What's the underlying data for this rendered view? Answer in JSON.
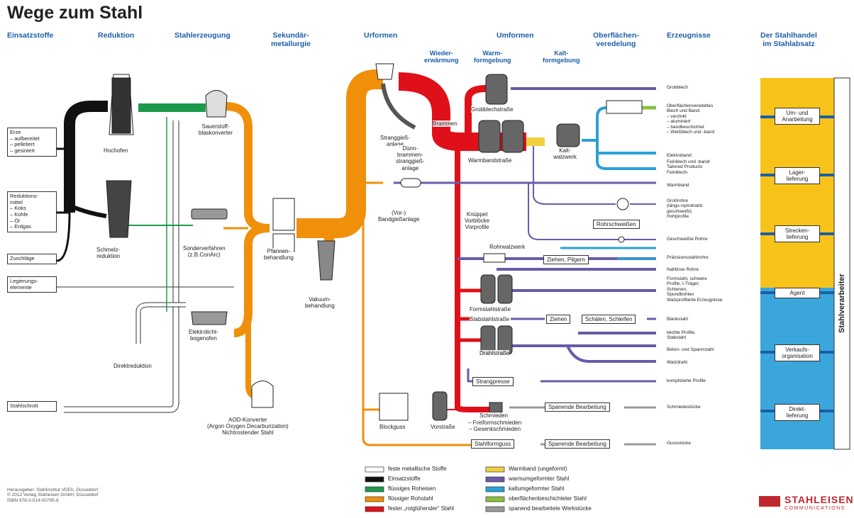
{
  "title": "Wege zum Stahl",
  "headers": [
    "Einsatzstoffe",
    "Reduktion",
    "Stahlerzeugung",
    "Sekundär-\nmetallurgie",
    "Urformen",
    "Umformen",
    "Oberflächen-\nveredelung",
    "Erzeugnisse",
    "Der Stahlhandel\nim Stahlabsatz"
  ],
  "subheaders": [
    "Wieder-\nerwärmung",
    "Warm-\nformgebung",
    "Kalt-\nformgebung"
  ],
  "inputs": [
    "Erze\n– aufbereitet\n– pelletiert\n– gesintert",
    "Reduktions-\nmittel\n– Koks\n– Kohle\n– Öl\n– Erdgas",
    "Zuschläge",
    "Legierungs-\nelemente",
    "Stahlschrott"
  ],
  "processes": [
    "Hochofen",
    "Schmelz-\nreduktion",
    "Direktreduktion",
    "Sauerstoff-\nblaskonverter",
    "Sonderverfahren\n(z.B.ConArc)",
    "Elektrolicht-\nbogenofen",
    "Pfannen-\nbehandlung",
    "Vakuum-\nbehandlung",
    "AOD-Konverter\n(Argon Oxygen Decarburization)\nNichtrostender Stahl",
    "Stranggieß-\nanlage",
    "Dünn-\nbrammen-\nstranggieß-\nanlage",
    "(Vor-)\nBandgießanlage",
    "Brammen",
    "Grobblechstraße",
    "Warmbandstraße",
    "Kalt-\nwalzwerk",
    "Knüppel\nVorblöcke\nVorprofile",
    "Rohrwalzwerk",
    "Formstahlstraße",
    "Stabstahlstraße",
    "Drahtstraße",
    "Schmieden",
    "– Freiformschmieden\n– Gesenkschmieden",
    "Blockguss",
    "Vorstraße"
  ],
  "boxed_steps": [
    "Rohrschweißen",
    "Ziehen, Pilgern",
    "Ziehen",
    "Schälen, Schleifen",
    "Strangpresse",
    "Spanende Bearbeitung",
    "Stahlformguss",
    "Spanende Bearbeitung"
  ],
  "products": [
    "Grobblech",
    "Oberflächenveredeltes\nBlech und Band:\n– verzinkt\n– aluminiert\n– bandbeschichtet\n– Weißblech und -band",
    "Elektroband",
    "Feinblech und -band/\nTailored Products\nFeinblech-",
    "Warmband",
    "Großrohre\n(längs-/spiralnaht-\ngeschweißt)\nHohlprofile",
    "Geschweißte Rohre",
    "Präzisionsstahlrohre",
    "Nahtlose Rohre",
    "Formstahl, schwere\nProfile, I-Träger,\nSchienen,\nSpundbohlen\nWalzprofilierte Erzeugnisse",
    "Blankstahl",
    "leichte Profile,\nStabstahl",
    "Beton- und Spannstahl",
    "Walzdraht",
    "komplizierte Profile",
    "Schmiedestücke",
    "Gussstücke"
  ],
  "trade": {
    "vertical_label": "Stahlverarbeiter",
    "channels": [
      "Um- und\nAnarbeitung",
      "Lager-\nlieferung",
      "Strecken-\nlieferung",
      "Agent",
      "Verkaufs-\norganisation",
      "Direkt-\nlieferung"
    ]
  },
  "legend": [
    {
      "label": "feste metallische Stoffe",
      "color": "#ffffff"
    },
    {
      "label": "Einsatzstoffe",
      "color": "#111111"
    },
    {
      "label": "flüssiges Roheisen",
      "color": "#1a9a4a"
    },
    {
      "label": "flüssiger Rohstahl",
      "color": "#f0900a"
    },
    {
      "label": "fester „rotglühender“ Stahl",
      "color": "#e0101a"
    },
    {
      "label": "Warmband (ungeformt)",
      "color": "#f0d040"
    },
    {
      "label": "warmumgeformter Stahl",
      "color": "#6a5aa8"
    },
    {
      "label": "kaltumgeformter Stahl",
      "color": "#2aa0d8"
    },
    {
      "label": "oberflächenbeschichteter Stahl",
      "color": "#8ac040"
    },
    {
      "label": "spanend bearbeitete Werkstücke",
      "color": "#9a9a9a"
    }
  ],
  "footer": {
    "publisher": "Herausgeber: Stahlinstitut VDEh, Düsseldorf\n© 2012 Verlag Stahleisen GmbH, Düsseldorf\nISBN 978-3-514-00795-6",
    "logo": "STAHLEISEN",
    "logo_sub": "COMMUNICATIONS"
  }
}
